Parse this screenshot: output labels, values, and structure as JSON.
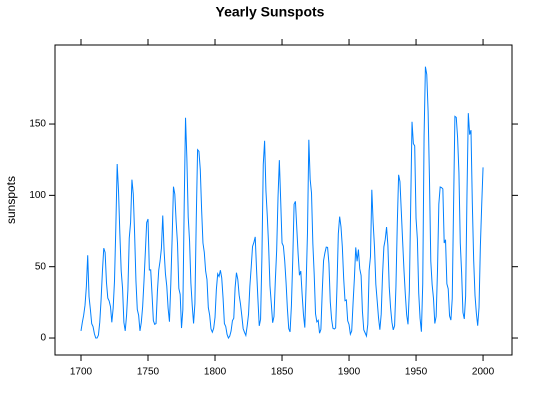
{
  "chart_data": {
    "type": "line",
    "title": "Yearly Sunspots",
    "ylabel": "sunspots",
    "color": "#0080ff",
    "x": [
      1700,
      1701,
      1702,
      1703,
      1704,
      1705,
      1706,
      1707,
      1708,
      1709,
      1710,
      1711,
      1712,
      1713,
      1714,
      1715,
      1716,
      1717,
      1718,
      1719,
      1720,
      1721,
      1722,
      1723,
      1724,
      1725,
      1726,
      1727,
      1728,
      1729,
      1730,
      1731,
      1732,
      1733,
      1734,
      1735,
      1736,
      1737,
      1738,
      1739,
      1740,
      1741,
      1742,
      1743,
      1744,
      1745,
      1746,
      1747,
      1748,
      1749,
      1750,
      1751,
      1752,
      1753,
      1754,
      1755,
      1756,
      1757,
      1758,
      1759,
      1760,
      1761,
      1762,
      1763,
      1764,
      1765,
      1766,
      1767,
      1768,
      1769,
      1770,
      1771,
      1772,
      1773,
      1774,
      1775,
      1776,
      1777,
      1778,
      1779,
      1780,
      1781,
      1782,
      1783,
      1784,
      1785,
      1786,
      1787,
      1788,
      1789,
      1790,
      1791,
      1792,
      1793,
      1794,
      1795,
      1796,
      1797,
      1798,
      1799,
      1800,
      1801,
      1802,
      1803,
      1804,
      1805,
      1806,
      1807,
      1808,
      1809,
      1810,
      1811,
      1812,
      1813,
      1814,
      1815,
      1816,
      1817,
      1818,
      1819,
      1820,
      1821,
      1822,
      1823,
      1824,
      1825,
      1826,
      1827,
      1828,
      1829,
      1830,
      1831,
      1832,
      1833,
      1834,
      1835,
      1836,
      1837,
      1838,
      1839,
      1840,
      1841,
      1842,
      1843,
      1844,
      1845,
      1846,
      1847,
      1848,
      1849,
      1850,
      1851,
      1852,
      1853,
      1854,
      1855,
      1856,
      1857,
      1858,
      1859,
      1860,
      1861,
      1862,
      1863,
      1864,
      1865,
      1866,
      1867,
      1868,
      1869,
      1870,
      1871,
      1872,
      1873,
      1874,
      1875,
      1876,
      1877,
      1878,
      1879,
      1880,
      1881,
      1882,
      1883,
      1884,
      1885,
      1886,
      1887,
      1888,
      1889,
      1890,
      1891,
      1892,
      1893,
      1894,
      1895,
      1896,
      1897,
      1898,
      1899,
      1900,
      1901,
      1902,
      1903,
      1904,
      1905,
      1906,
      1907,
      1908,
      1909,
      1910,
      1911,
      1912,
      1913,
      1914,
      1915,
      1916,
      1917,
      1918,
      1919,
      1920,
      1921,
      1922,
      1923,
      1924,
      1925,
      1926,
      1927,
      1928,
      1929,
      1930,
      1931,
      1932,
      1933,
      1934,
      1935,
      1936,
      1937,
      1938,
      1939,
      1940,
      1941,
      1942,
      1943,
      1944,
      1945,
      1946,
      1947,
      1948,
      1949,
      1950,
      1951,
      1952,
      1953,
      1954,
      1955,
      1956,
      1957,
      1958,
      1959,
      1960,
      1961,
      1962,
      1963,
      1964,
      1965,
      1966,
      1967,
      1968,
      1969,
      1970,
      1971,
      1972,
      1973,
      1974,
      1975,
      1976,
      1977,
      1978,
      1979,
      1980,
      1981,
      1982,
      1983,
      1984,
      1985,
      1986,
      1987,
      1988,
      1989,
      1990,
      1991,
      1992,
      1993,
      1994,
      1995,
      1996,
      1997,
      1998,
      1999,
      2000
    ],
    "values": [
      5,
      11,
      16,
      23,
      36,
      58,
      29,
      20,
      10,
      8,
      3,
      0,
      0,
      2,
      11,
      27,
      47,
      63,
      60,
      39,
      28,
      26,
      22,
      11,
      21,
      40,
      78,
      122,
      103,
      73,
      47,
      35,
      11,
      5,
      16,
      34,
      70,
      81,
      111,
      101,
      73,
      40,
      20,
      16,
      5,
      11,
      22,
      40,
      60,
      80.9,
      83.4,
      47.7,
      47.8,
      30.7,
      12.2,
      9.6,
      10.2,
      32.4,
      47.6,
      54,
      62.9,
      85.9,
      61.2,
      45.1,
      36.4,
      20.9,
      11.4,
      37.8,
      69.8,
      106.1,
      100.8,
      81.6,
      66.5,
      34.8,
      30.6,
      7,
      19.8,
      92.5,
      154.4,
      125.9,
      84.8,
      68.1,
      38.5,
      22.8,
      10.2,
      24.1,
      82.9,
      132,
      130.9,
      118.1,
      89.9,
      66.6,
      60,
      46.9,
      41,
      21.3,
      16,
      6.4,
      4.1,
      6.8,
      14.5,
      34,
      45,
      43.1,
      47.5,
      42.2,
      28.1,
      10.1,
      8.1,
      2.5,
      0,
      1.4,
      5,
      12.2,
      13.9,
      35.4,
      45.8,
      41.1,
      30.1,
      23.9,
      15.6,
      6.6,
      4,
      1.8,
      8.5,
      16.6,
      36.3,
      49.6,
      64.2,
      67,
      70.9,
      47.8,
      27.5,
      8.5,
      13.2,
      56.9,
      121.5,
      138.3,
      103.2,
      85.7,
      64.6,
      36.7,
      24.2,
      10.7,
      15,
      40.1,
      61.5,
      98.5,
      124.7,
      96.3,
      66.6,
      64.5,
      54.1,
      39,
      20.6,
      6.7,
      4.3,
      22.7,
      54.8,
      93.8,
      95.8,
      77.2,
      59.1,
      44,
      47,
      30.5,
      16.3,
      7.3,
      37.6,
      74,
      139,
      111.2,
      101.6,
      66.2,
      44.7,
      17,
      11.3,
      12.4,
      3.4,
      6,
      32.3,
      54.3,
      59.7,
      63.7,
      63.5,
      52.2,
      25.4,
      13.1,
      6.8,
      6.3,
      7.1,
      35.6,
      73,
      85.1,
      78,
      64,
      41.8,
      26.2,
      26.7,
      12.1,
      9.5,
      2.7,
      5,
      24.4,
      42,
      63.5,
      53.8,
      62,
      48.5,
      43.9,
      18.6,
      5.7,
      3.6,
      1.4,
      9.6,
      47.4,
      57.1,
      103.9,
      80.6,
      63.6,
      37.6,
      26.1,
      14.2,
      5.8,
      16.7,
      44.3,
      63.9,
      69,
      77.8,
      64.9,
      35.7,
      21.2,
      11.1,
      5.7,
      8.7,
      36.1,
      79.7,
      114.4,
      109.6,
      88.8,
      67.8,
      47.5,
      30.6,
      16.3,
      9.6,
      33.2,
      92.6,
      151.6,
      136.3,
      134.7,
      83.9,
      69.4,
      31.5,
      13.9,
      4.4,
      38,
      141.7,
      190.2,
      184.8,
      159,
      112.3,
      53.9,
      37.5,
      27.9,
      10.2,
      15.1,
      47,
      93.8,
      105.9,
      105.5,
      104.5,
      66.6,
      68.9,
      38,
      34.5,
      15.5,
      12.6,
      27.5,
      92.5,
      155.4,
      154.7,
      140.5,
      115.9,
      66.6,
      45.9,
      17.9,
      13.4,
      29.4,
      100.2,
      157.6,
      142.6,
      145.7,
      94.3,
      54.6,
      29.9,
      17.5,
      8.6,
      21.5,
      64.3,
      93.3,
      119.6
    ],
    "xlim": [
      1680.6,
      2021.6
    ],
    "xticks": [
      1700,
      1750,
      1800,
      1850,
      1900,
      1950,
      2000
    ],
    "ylim": [
      -11.9,
      205.4
    ],
    "yticks": [
      0,
      50,
      100,
      150
    ]
  }
}
